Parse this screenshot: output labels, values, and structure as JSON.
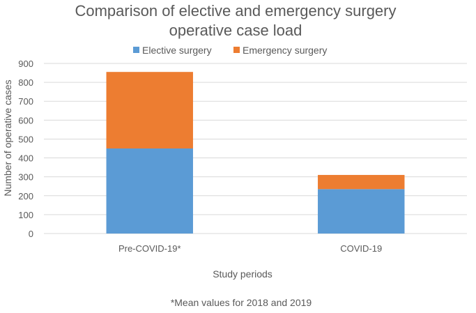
{
  "chart_data": {
    "type": "bar",
    "stacked": true,
    "title_lines": [
      "Comparison of elective and emergency surgery",
      "operative case load"
    ],
    "categories": [
      "Pre-COVID-19*",
      "COVID-19"
    ],
    "series": [
      {
        "name": "Elective surgery",
        "values": [
          450,
          235
        ],
        "color": "#5b9bd5"
      },
      {
        "name": "Emergency surgery",
        "values": [
          405,
          75
        ],
        "color": "#ed7d31"
      }
    ],
    "xlabel": "Study periods",
    "ylabel": "Number of operative cases",
    "ylim": [
      0,
      900
    ],
    "yticks": [
      0,
      100,
      200,
      300,
      400,
      500,
      600,
      700,
      800,
      900
    ],
    "grid": true,
    "legend_position": "top"
  },
  "footnote": "*Mean values for 2018 and 2019"
}
